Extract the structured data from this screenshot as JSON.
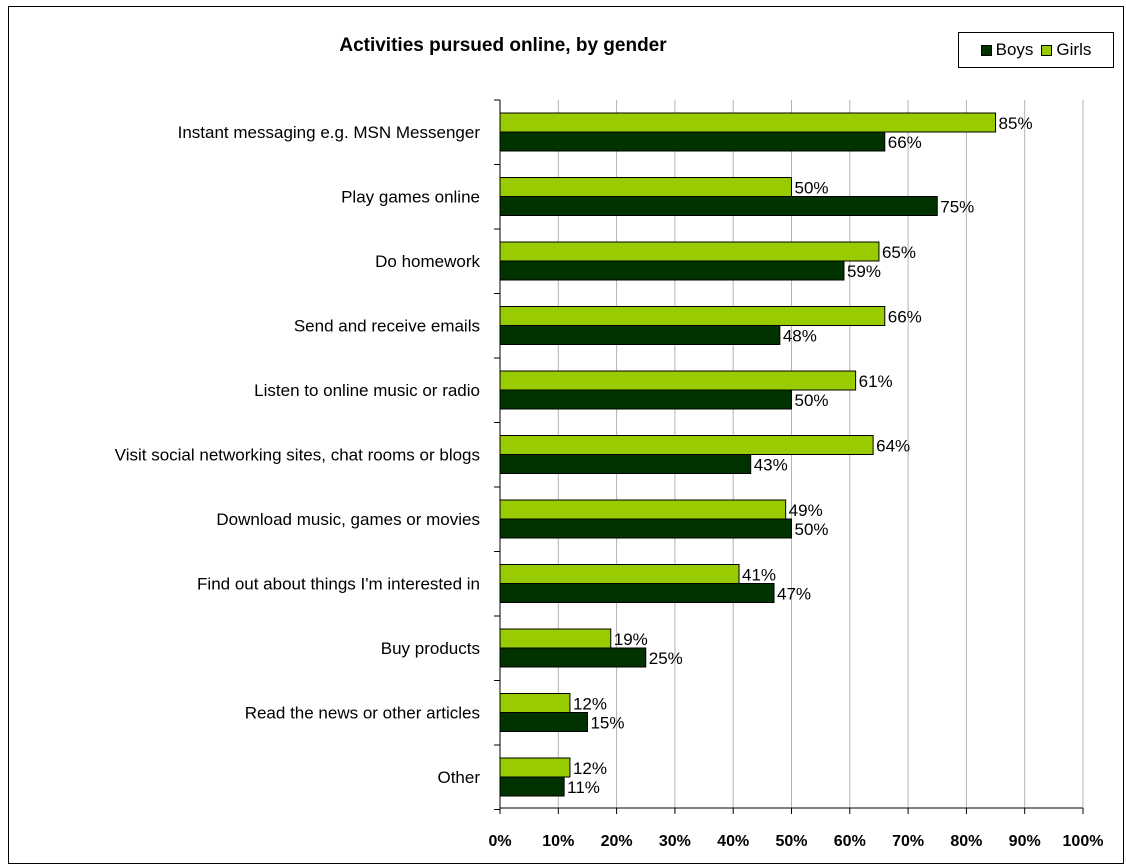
{
  "chart_data": {
    "type": "bar",
    "orientation": "horizontal",
    "title": "Activities pursued online, by gender",
    "categories": [
      "Instant messaging e.g. MSN Messenger",
      "Play games online",
      "Do homework",
      "Send and receive emails",
      "Listen to online music or radio",
      "Visit social networking sites, chat rooms or blogs",
      "Download music, games or movies",
      "Find out about things I'm interested in",
      "Buy products",
      "Read the news or other articles",
      "Other"
    ],
    "series": [
      {
        "name": "Girls",
        "color": "#99cc00",
        "values": [
          85,
          50,
          65,
          66,
          61,
          64,
          49,
          41,
          19,
          12,
          12
        ]
      },
      {
        "name": "Boys",
        "color": "#003300",
        "values": [
          66,
          75,
          59,
          48,
          50,
          43,
          50,
          47,
          25,
          15,
          11
        ]
      }
    ],
    "xlim": [
      0,
      100
    ],
    "xticks": [
      "0%",
      "10%",
      "20%",
      "30%",
      "40%",
      "50%",
      "60%",
      "70%",
      "80%",
      "90%",
      "100%"
    ],
    "value_suffix": "%",
    "grid": "vertical",
    "legend": {
      "position": "top-right",
      "order": [
        "Boys",
        "Girls"
      ]
    }
  }
}
